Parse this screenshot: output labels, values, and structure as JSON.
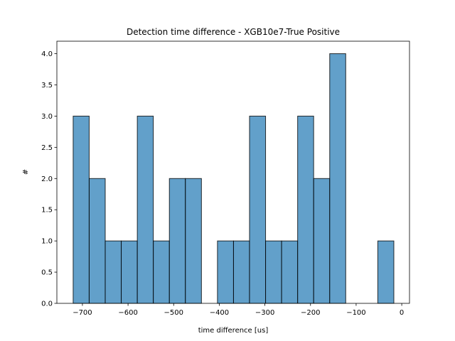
{
  "chart_data": {
    "type": "histogram",
    "title": "Detection time difference - XGB10e7-True Positive",
    "xlabel": "time difference [us]",
    "ylabel": "#",
    "bins": [
      -720.3,
      -685.2,
      -650.0,
      -614.9,
      -579.7,
      -544.6,
      -509.4,
      -474.3,
      -439.1,
      -404.0,
      -368.8,
      -333.7,
      -298.5,
      -263.4,
      -228.2,
      -193.1,
      -157.9,
      -122.8,
      -87.6,
      -52.5,
      -17.3
    ],
    "counts": [
      3,
      2,
      1,
      1,
      3,
      1,
      2,
      2,
      0,
      1,
      1,
      3,
      1,
      1,
      3,
      2,
      4,
      0,
      0,
      1
    ],
    "color": "#1f77b4",
    "alpha": 0.7,
    "edgecolor": "#000000",
    "xlim": [
      -756,
      17
    ],
    "ylim": [
      0,
      4.2
    ],
    "xticks": [
      {
        "value": -700,
        "label": "−700"
      },
      {
        "value": -600,
        "label": "−600"
      },
      {
        "value": -500,
        "label": "−500"
      },
      {
        "value": -400,
        "label": "−400"
      },
      {
        "value": -300,
        "label": "−300"
      },
      {
        "value": -200,
        "label": "−200"
      },
      {
        "value": -100,
        "label": "−100"
      },
      0
    ],
    "yticks": [
      {
        "value": 0,
        "label": "0.0"
      },
      {
        "value": 0.5,
        "label": "0.5"
      },
      {
        "value": 1,
        "label": "1.0"
      },
      {
        "value": 1.5,
        "label": "1.5"
      },
      {
        "value": 2,
        "label": "2.0"
      },
      {
        "value": 2.5,
        "label": "2.5"
      },
      {
        "value": 3,
        "label": "3.0"
      },
      {
        "value": 3.5,
        "label": "3.5"
      },
      {
        "value": 4,
        "label": "4.0"
      }
    ]
  }
}
